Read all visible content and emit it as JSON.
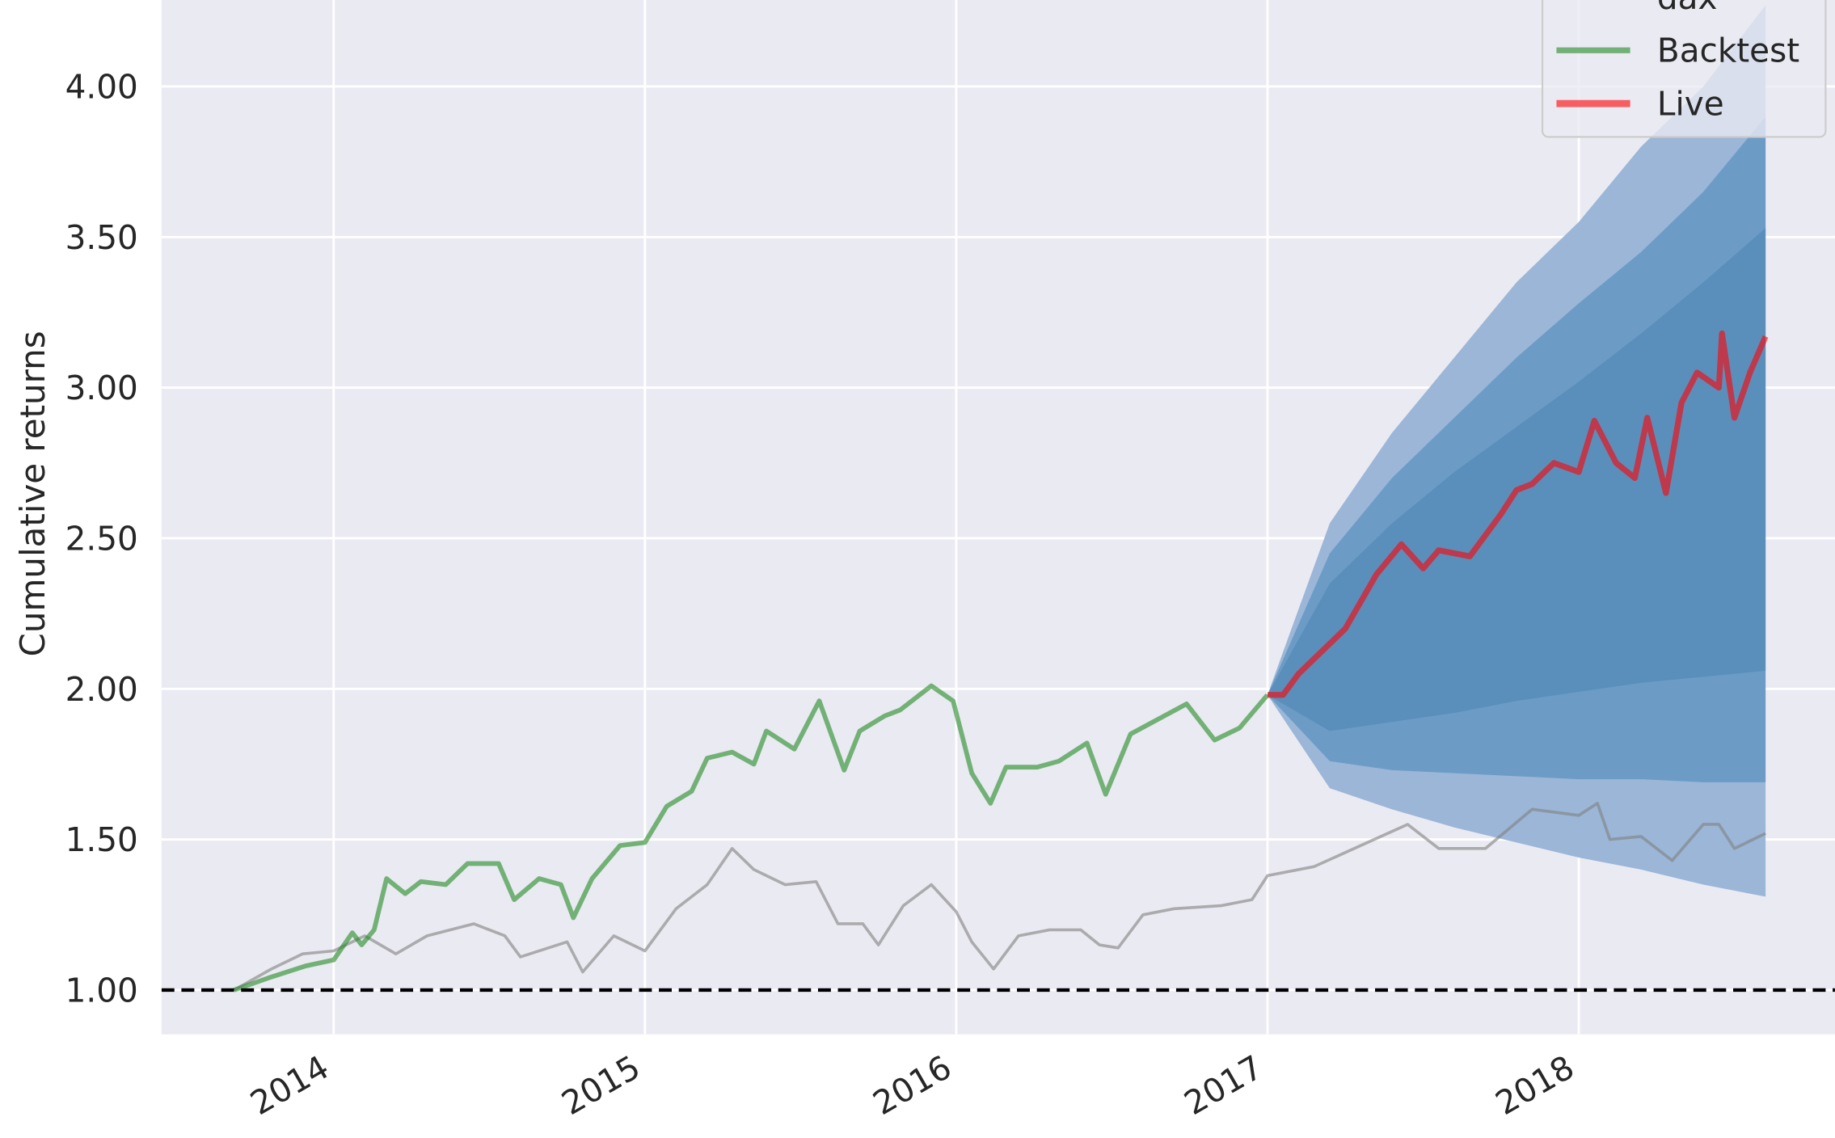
{
  "chart_data": {
    "type": "line",
    "ylabel": "Cumulative returns",
    "xlim": [
      2013.447,
      2018.823
    ],
    "ylim": [
      0.853,
      4.287
    ],
    "xticks": [
      2014,
      2015,
      2016,
      2017,
      2018
    ],
    "yticks": [
      {
        "value": 1,
        "label": "1.00"
      },
      {
        "value": 1.5,
        "label": "1.50"
      },
      {
        "value": 2,
        "label": "2.00"
      },
      {
        "value": 2.5,
        "label": "2.50"
      },
      {
        "value": 3,
        "label": "3.00"
      },
      {
        "value": 3.5,
        "label": "3.50"
      },
      {
        "value": 4,
        "label": "4.00"
      }
    ],
    "grid": true,
    "legend": "upper right",
    "reference_line": 1,
    "bands": [
      {
        "color": "#9bb6d7",
        "x": [
          2017.0,
          2017.2,
          2017.4,
          2017.6,
          2017.8,
          2018.0,
          2018.2,
          2018.4,
          2018.6
        ],
        "upper": [
          1.98,
          2.55,
          2.85,
          3.1,
          3.35,
          3.55,
          3.8,
          4.0,
          4.27
        ],
        "lower": [
          1.98,
          1.67,
          1.6,
          1.54,
          1.49,
          1.44,
          1.4,
          1.35,
          1.31
        ]
      },
      {
        "color": "#6c9cc6",
        "x": [
          2017.0,
          2017.2,
          2017.4,
          2017.6,
          2017.8,
          2018.0,
          2018.2,
          2018.4,
          2018.6
        ],
        "upper": [
          1.98,
          2.45,
          2.7,
          2.9,
          3.1,
          3.28,
          3.45,
          3.65,
          3.9
        ],
        "lower": [
          1.98,
          1.76,
          1.73,
          1.72,
          1.71,
          1.7,
          1.7,
          1.69,
          1.69
        ]
      },
      {
        "color": "#5a8fbc",
        "x": [
          2017.0,
          2017.2,
          2017.4,
          2017.6,
          2017.8,
          2018.0,
          2018.2,
          2018.4,
          2018.6
        ],
        "upper": [
          1.98,
          2.35,
          2.55,
          2.72,
          2.87,
          3.02,
          3.18,
          3.35,
          3.53
        ],
        "lower": [
          1.98,
          1.86,
          1.89,
          1.92,
          1.96,
          1.99,
          2.02,
          2.04,
          2.06
        ]
      }
    ],
    "series": [
      {
        "name": "dax",
        "color": "gray",
        "alpha": 0.6,
        "width": 2.5,
        "x": [
          2013.68,
          2013.8,
          2013.9,
          2014.0,
          2014.1,
          2014.2,
          2014.3,
          2014.45,
          2014.55,
          2014.6,
          2014.75,
          2014.8,
          2014.9,
          2015.0,
          2015.1,
          2015.2,
          2015.28,
          2015.35,
          2015.45,
          2015.55,
          2015.62,
          2015.7,
          2015.75,
          2015.83,
          2015.92,
          2016.0,
          2016.05,
          2016.12,
          2016.2,
          2016.3,
          2016.4,
          2016.46,
          2016.52,
          2016.6,
          2016.7,
          2016.85,
          2016.95,
          2017.0,
          2017.15,
          2017.3,
          2017.45,
          2017.55,
          2017.7,
          2017.85,
          2018.0,
          2018.06,
          2018.1,
          2018.2,
          2018.3,
          2018.4,
          2018.45,
          2018.5,
          2018.6
        ],
        "values": [
          1.0,
          1.07,
          1.12,
          1.13,
          1.18,
          1.12,
          1.18,
          1.22,
          1.18,
          1.11,
          1.16,
          1.06,
          1.18,
          1.13,
          1.27,
          1.35,
          1.47,
          1.4,
          1.35,
          1.36,
          1.22,
          1.22,
          1.15,
          1.28,
          1.35,
          1.26,
          1.16,
          1.07,
          1.18,
          1.2,
          1.2,
          1.15,
          1.14,
          1.25,
          1.27,
          1.28,
          1.3,
          1.38,
          1.41,
          1.48,
          1.55,
          1.47,
          1.47,
          1.6,
          1.58,
          1.62,
          1.5,
          1.51,
          1.43,
          1.55,
          1.55,
          1.47,
          1.52
        ]
      },
      {
        "name": "Backtest",
        "color": "forestgreen",
        "alpha": 0.6,
        "width": 4,
        "x": [
          2013.68,
          2013.79,
          2013.91,
          2014.0,
          2014.06,
          2014.09,
          2014.13,
          2014.17,
          2014.23,
          2014.28,
          2014.36,
          2014.43,
          2014.53,
          2014.58,
          2014.66,
          2014.73,
          2014.77,
          2014.83,
          2014.92,
          2015.0,
          2015.07,
          2015.15,
          2015.2,
          2015.28,
          2015.35,
          2015.39,
          2015.48,
          2015.56,
          2015.64,
          2015.69,
          2015.77,
          2015.82,
          2015.92,
          2015.99,
          2016.05,
          2016.11,
          2016.16,
          2016.26,
          2016.33,
          2016.42,
          2016.48,
          2016.56,
          2016.65,
          2016.74,
          2016.83,
          2016.91,
          2017.0
        ],
        "values": [
          1.0,
          1.04,
          1.08,
          1.1,
          1.19,
          1.15,
          1.2,
          1.37,
          1.32,
          1.36,
          1.35,
          1.42,
          1.42,
          1.3,
          1.37,
          1.35,
          1.24,
          1.37,
          1.48,
          1.49,
          1.61,
          1.66,
          1.77,
          1.79,
          1.75,
          1.86,
          1.8,
          1.96,
          1.73,
          1.86,
          1.91,
          1.93,
          2.01,
          1.96,
          1.72,
          1.62,
          1.74,
          1.74,
          1.76,
          1.82,
          1.65,
          1.85,
          1.9,
          1.95,
          1.83,
          1.87,
          1.98
        ]
      },
      {
        "name": "Live",
        "color": "red",
        "alpha": 0.6,
        "width": 5,
        "x": [
          2017.0,
          2017.05,
          2017.1,
          2017.2,
          2017.25,
          2017.35,
          2017.43,
          2017.5,
          2017.55,
          2017.65,
          2017.75,
          2017.8,
          2017.85,
          2017.92,
          2018.0,
          2018.05,
          2018.12,
          2018.18,
          2018.22,
          2018.28,
          2018.33,
          2018.38,
          2018.45,
          2018.46,
          2018.5,
          2018.55,
          2018.6
        ],
        "values": [
          1.98,
          1.98,
          2.05,
          2.15,
          2.2,
          2.38,
          2.48,
          2.4,
          2.46,
          2.44,
          2.58,
          2.66,
          2.68,
          2.75,
          2.72,
          2.89,
          2.75,
          2.7,
          2.9,
          2.65,
          2.95,
          3.05,
          3.0,
          3.18,
          2.9,
          3.05,
          3.17
        ]
      }
    ]
  }
}
